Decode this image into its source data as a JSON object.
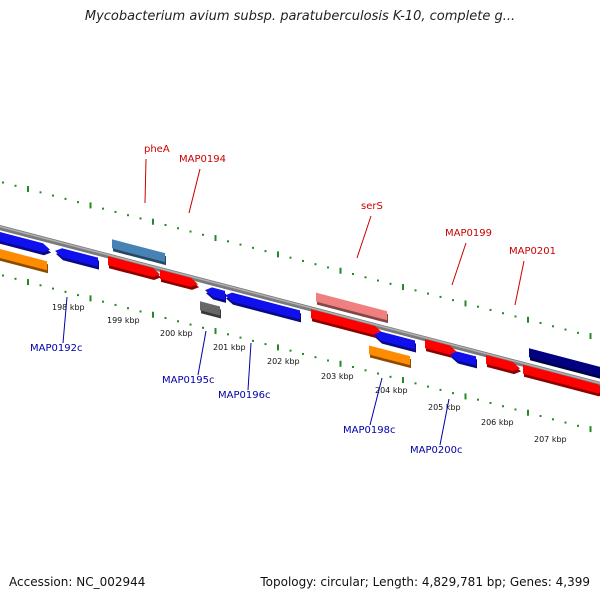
{
  "title": "Mycobacterium avium subsp. paratuberculosis K-10, complete g...",
  "footer": {
    "accession": "Accession: NC_002944",
    "topology": "Topology: circular; Length: 4,829,781 bp; Genes: 4,399"
  },
  "colors": {
    "forward_label": "#cc0000",
    "reverse_label": "#0000aa",
    "red": "#ff0000",
    "blue": "#1010ee",
    "orange": "#ff8c00",
    "steelblue": "#4682b4",
    "pink": "#f08080",
    "gray": "#666666",
    "navy": "#000080",
    "tick": "#228b22",
    "backbone": "#808080"
  },
  "kbp_ticks": [
    {
      "label": "198 kbp"
    },
    {
      "label": "199 kbp"
    },
    {
      "label": "200 kbp"
    },
    {
      "label": "201 kbp"
    },
    {
      "label": "202 kbp"
    },
    {
      "label": "203 kbp"
    },
    {
      "label": "204 kbp"
    },
    {
      "label": "205 kbp"
    },
    {
      "label": "206 kbp"
    },
    {
      "label": "207 kbp"
    }
  ],
  "gene_labels": [
    {
      "text": "pheA",
      "strand": "forward"
    },
    {
      "text": "MAP0194",
      "strand": "forward"
    },
    {
      "text": "serS",
      "strand": "forward"
    },
    {
      "text": "MAP0199",
      "strand": "forward"
    },
    {
      "text": "MAP0201",
      "strand": "forward"
    },
    {
      "text": "MAP0192c",
      "strand": "reverse"
    },
    {
      "text": "MAP0195c",
      "strand": "reverse"
    },
    {
      "text": "MAP0196c",
      "strand": "reverse"
    },
    {
      "text": "MAP0198c",
      "strand": "reverse"
    },
    {
      "text": "MAP0200c",
      "strand": "reverse"
    }
  ]
}
